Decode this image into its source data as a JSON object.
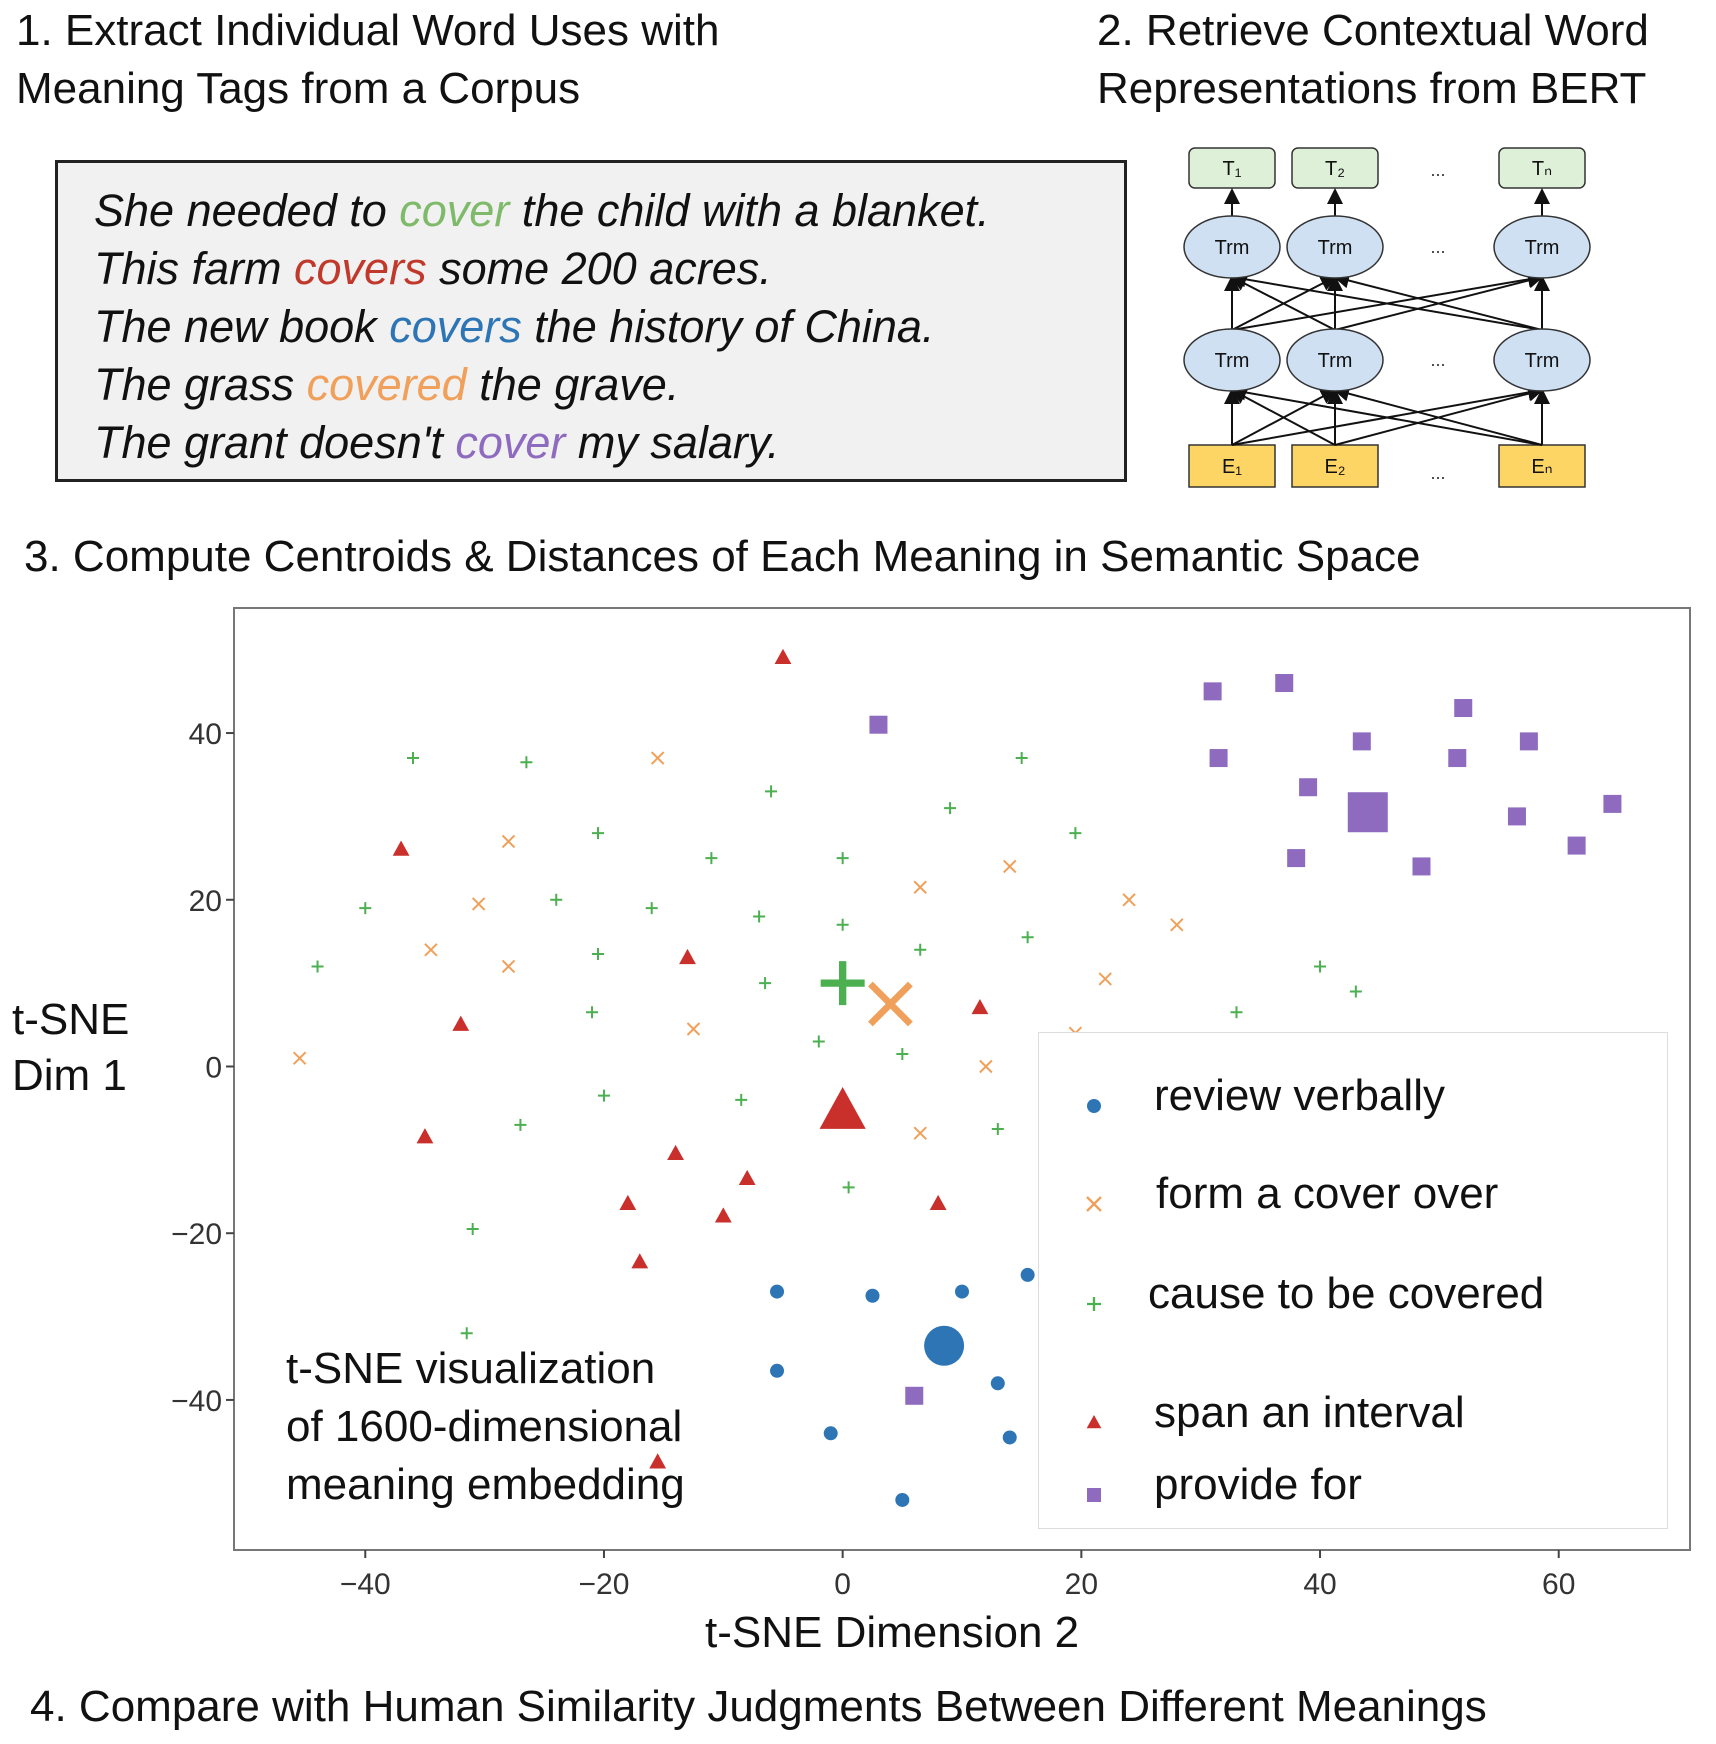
{
  "steps": {
    "step1_line1": "1. Extract Individual Word Uses with",
    "step1_line2": "Meaning Tags from a Corpus",
    "step2_line1": "2. Retrieve Contextual Word",
    "step2_line2": "Representations from BERT",
    "step3": "3. Compute Centroids & Distances of Each Meaning in Semantic Space",
    "step4": "4. Compare with Human Similarity Judgments Between Different Meanings"
  },
  "sentences": [
    {
      "before": "She needed to ",
      "word": "cover",
      "after": " the child with a blanket.",
      "color": "#7fba6b"
    },
    {
      "before": "This farm ",
      "word": "covers",
      "after": " some 200 acres.",
      "color": "#c0392b"
    },
    {
      "before": "The new book ",
      "word": "covers",
      "after": " the history of China.",
      "color": "#2e75b6"
    },
    {
      "before": "The grass ",
      "word": "covered",
      "after": " the grave.",
      "color": "#f0a05a"
    },
    {
      "before": "The grant doesn't ",
      "word": "cover",
      "after": " my salary.",
      "color": "#8e6bbf"
    }
  ],
  "bert": {
    "top_tokens": [
      "T₁",
      "T₂",
      "Tₙ"
    ],
    "trm_label": "Trm",
    "bottom_tokens": [
      "E₁",
      "E₂",
      "Eₙ"
    ],
    "ellipsis": "..."
  },
  "overlay_label": [
    "t-SNE  visualization",
    "of 1600-dimensional",
    "meaning embedding"
  ],
  "chart_data": {
    "type": "scatter",
    "xlabel": "t-SNE Dimension 2",
    "ylabel": "t-SNE Dim 1",
    "xlim": [
      -51,
      71
    ],
    "ylim": [
      -58,
      55
    ],
    "xticks": [
      -40,
      -20,
      0,
      20,
      40,
      60
    ],
    "yticks": [
      40,
      20,
      0,
      -20,
      -40
    ],
    "legend_position": "lower-right",
    "series": [
      {
        "name": "review verbally",
        "marker": "circle",
        "color": "#2e75b6",
        "points": [
          [
            -5.5,
            -27
          ],
          [
            2.5,
            -27.5
          ],
          [
            10,
            -27
          ],
          [
            15.5,
            -25
          ],
          [
            -5.5,
            -36.5
          ],
          [
            13,
            -38
          ],
          [
            -1,
            -44
          ],
          [
            14,
            -44.5
          ],
          [
            5,
            -52
          ]
        ],
        "centroid": [
          8.5,
          -33.5
        ]
      },
      {
        "name": "form a cover over",
        "marker": "x",
        "color": "#f0a05a",
        "points": [
          [
            -15.5,
            37
          ],
          [
            -28,
            27
          ],
          [
            -30.5,
            19.5
          ],
          [
            -34.5,
            14
          ],
          [
            -28,
            12
          ],
          [
            -45.5,
            1
          ],
          [
            -12.5,
            4.5
          ],
          [
            6.5,
            21.5
          ],
          [
            14,
            24
          ],
          [
            24,
            20
          ],
          [
            28,
            17
          ],
          [
            22,
            10.5
          ],
          [
            19.5,
            4
          ],
          [
            12,
            0
          ],
          [
            6.5,
            -8
          ]
        ],
        "centroid": [
          4,
          7.5
        ]
      },
      {
        "name": "cause to be covered",
        "marker": "plus",
        "color": "#4caf50",
        "points": [
          [
            -36,
            37
          ],
          [
            -26.5,
            36.5
          ],
          [
            -6,
            33
          ],
          [
            -20.5,
            28
          ],
          [
            -11,
            25
          ],
          [
            0,
            25
          ],
          [
            15,
            37
          ],
          [
            9,
            31
          ],
          [
            19.5,
            28
          ],
          [
            -40,
            19
          ],
          [
            -24,
            20
          ],
          [
            -16,
            19
          ],
          [
            -7,
            18
          ],
          [
            0,
            17
          ],
          [
            -20.5,
            13.5
          ],
          [
            -6.5,
            10
          ],
          [
            6.5,
            14
          ],
          [
            15.5,
            15.5
          ],
          [
            -44,
            12
          ],
          [
            -21,
            6.5
          ],
          [
            -2,
            3
          ],
          [
            5,
            1.5
          ],
          [
            -20,
            -3.5
          ],
          [
            -8.5,
            -4
          ],
          [
            -27,
            -7
          ],
          [
            13,
            -7.5
          ],
          [
            0.5,
            -14.5
          ],
          [
            -31,
            -19.5
          ],
          [
            -31.5,
            -32
          ],
          [
            40,
            12
          ],
          [
            43,
            9
          ],
          [
            33,
            6.5
          ]
        ],
        "centroid": [
          0,
          10
        ]
      },
      {
        "name": "span an interval",
        "marker": "triangle",
        "color": "#c9302c",
        "points": [
          [
            -5,
            49
          ],
          [
            -37,
            26
          ],
          [
            -13,
            13
          ],
          [
            -32,
            5
          ],
          [
            11.5,
            7
          ],
          [
            -35,
            -8.5
          ],
          [
            -14,
            -10.5
          ],
          [
            -8,
            -13.5
          ],
          [
            -18,
            -16.5
          ],
          [
            -10,
            -18
          ],
          [
            8,
            -16.5
          ],
          [
            -17,
            -23.5
          ],
          [
            -15.5,
            -47.5
          ]
        ],
        "centroid": [
          0,
          -5.5
        ]
      },
      {
        "name": "provide for",
        "marker": "square",
        "color": "#8e6bbf",
        "points": [
          [
            3,
            41
          ],
          [
            31,
            45
          ],
          [
            37,
            46
          ],
          [
            31.5,
            37
          ],
          [
            43.5,
            39
          ],
          [
            52,
            43
          ],
          [
            51.5,
            37
          ],
          [
            57.5,
            39
          ],
          [
            39,
            33.5
          ],
          [
            64.5,
            31.5
          ],
          [
            56.5,
            30
          ],
          [
            38,
            25
          ],
          [
            48.5,
            24
          ],
          [
            61.5,
            26.5
          ],
          [
            6,
            -39.5
          ]
        ],
        "centroid": [
          44,
          30.5
        ]
      }
    ]
  }
}
